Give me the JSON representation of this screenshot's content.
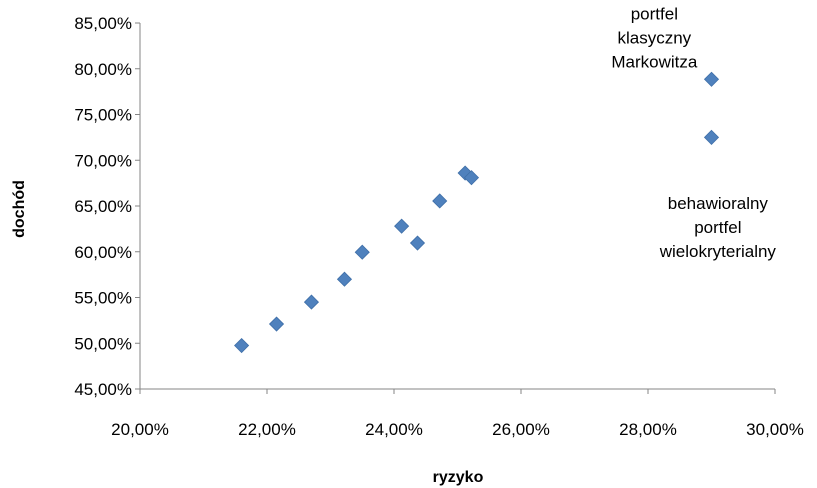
{
  "chart_data": {
    "type": "scatter",
    "xlabel": "ryzyko",
    "ylabel": "dochód",
    "xlim": [
      0.2,
      0.3
    ],
    "ylim": [
      0.45,
      0.85
    ],
    "x_ticks": [
      "20,00%",
      "22,00%",
      "24,00%",
      "26,00%",
      "28,00%",
      "30,00%"
    ],
    "y_ticks": [
      "45,00%",
      "50,00%",
      "55,00%",
      "60,00%",
      "65,00%",
      "70,00%",
      "75,00%",
      "80,00%",
      "85,00%"
    ],
    "grid": false,
    "legend": "none",
    "marker_color": "#4F81BD",
    "series": [
      {
        "points": [
          {
            "x": 0.216,
            "y": 0.4975
          },
          {
            "x": 0.2215,
            "y": 0.521
          },
          {
            "x": 0.227,
            "y": 0.545
          },
          {
            "x": 0.2322,
            "y": 0.57
          },
          {
            "x": 0.235,
            "y": 0.5995
          },
          {
            "x": 0.2412,
            "y": 0.628
          },
          {
            "x": 0.2437,
            "y": 0.6095
          },
          {
            "x": 0.2472,
            "y": 0.6555
          },
          {
            "x": 0.2512,
            "y": 0.686
          },
          {
            "x": 0.2522,
            "y": 0.681
          },
          {
            "x": 0.29,
            "y": 0.725
          },
          {
            "x": 0.29,
            "y": 0.7885
          }
        ]
      }
    ],
    "annotations": [
      {
        "lines": [
          "portfel",
          "klasyczny",
          "Markowitza"
        ],
        "x": 0.281,
        "y": 0.854
      },
      {
        "lines": [
          "behawioralny",
          "portfel",
          "wielokryterialny"
        ],
        "x": 0.291,
        "y": 0.6465
      }
    ]
  }
}
